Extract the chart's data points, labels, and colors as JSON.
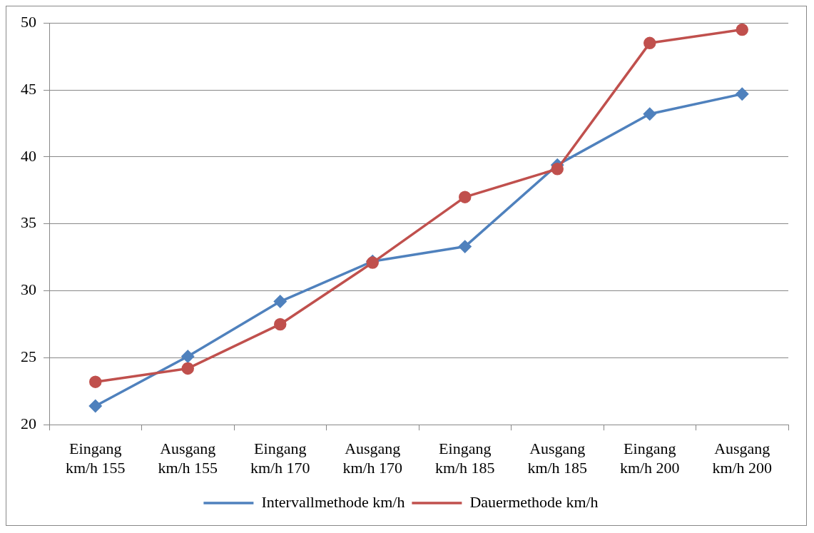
{
  "chart_data": {
    "type": "line",
    "categories": [
      "Eingang km/h 155",
      "Ausgang km/h 155",
      "Eingang km/h 170",
      "Ausgang km/h 170",
      "Eingang km/h 185",
      "Ausgang km/h 185",
      "Eingang km/h 200",
      "Ausgang km/h 200"
    ],
    "series": [
      {
        "name": "Intervallmethode km/h",
        "color": "#4f81bd",
        "marker": "diamond",
        "values": [
          21.4,
          25.1,
          29.2,
          32.2,
          33.3,
          39.4,
          43.2,
          44.7
        ]
      },
      {
        "name": "Dauermethode km/h",
        "color": "#c0504d",
        "marker": "circle",
        "values": [
          23.2,
          24.2,
          27.5,
          32.1,
          37.0,
          39.1,
          48.5,
          49.5
        ]
      }
    ],
    "ylim": [
      20,
      50
    ],
    "yticks": [
      20,
      25,
      30,
      35,
      40,
      45,
      50
    ],
    "grid": "y",
    "legend": "bottom"
  }
}
